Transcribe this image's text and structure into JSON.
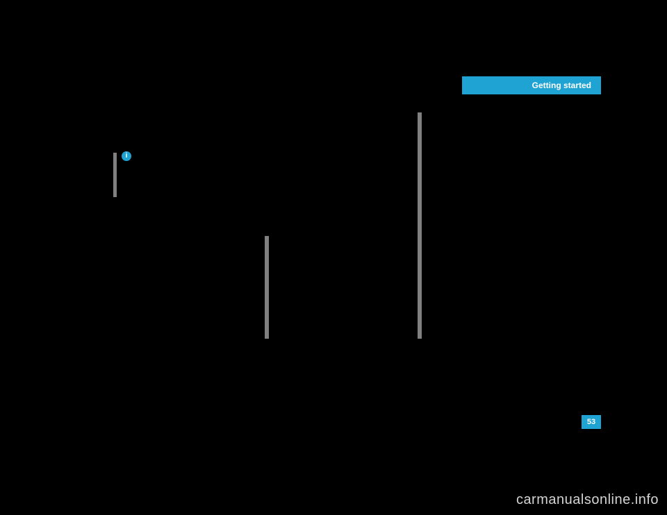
{
  "header": {
    "section_title": "Getting started"
  },
  "info_block": {
    "icon_label": "i",
    "text": ""
  },
  "mid_block": {
    "text": ""
  },
  "right_block": {
    "text": ""
  },
  "page_number": "53",
  "watermark": "carmanualsonline.info",
  "colors": {
    "accent": "#1fa3d2",
    "bar": "#808080",
    "background": "#000000",
    "watermark_text": "#d4d4d4"
  }
}
